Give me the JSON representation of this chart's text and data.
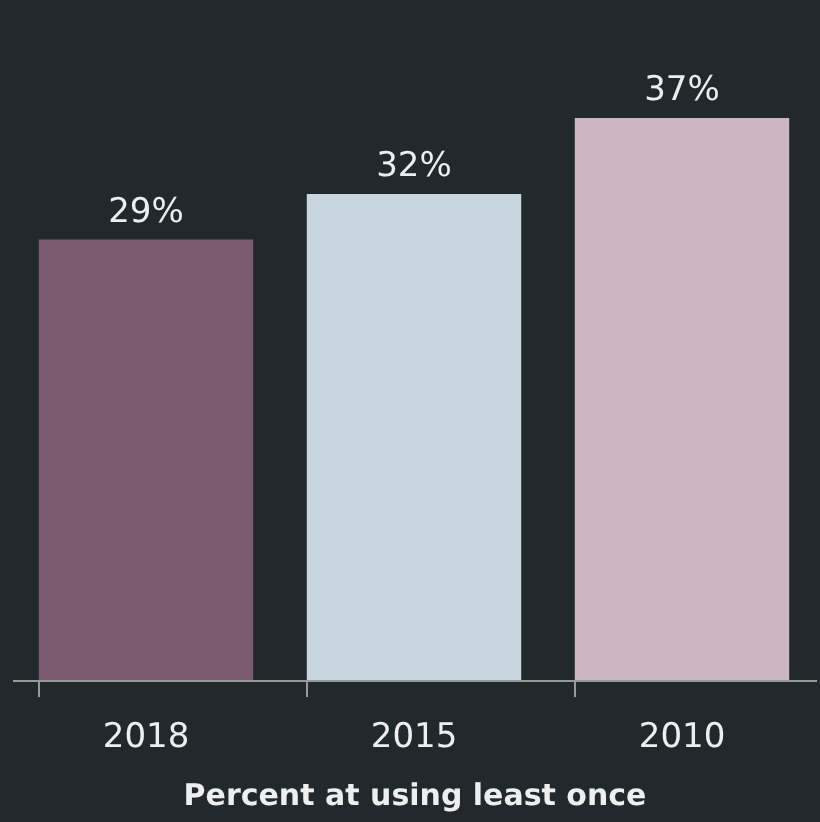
{
  "chart_data": {
    "type": "bar",
    "xlabel": "Percent at using least once",
    "categories": [
      "2018",
      "2015",
      "2010"
    ],
    "values": [
      29,
      32,
      37
    ],
    "colors": [
      "#7b5b6f",
      "#c6d6dc",
      "#ccb6c2"
    ],
    "value_labels": [
      "29%",
      "32%",
      "37%"
    ]
  }
}
